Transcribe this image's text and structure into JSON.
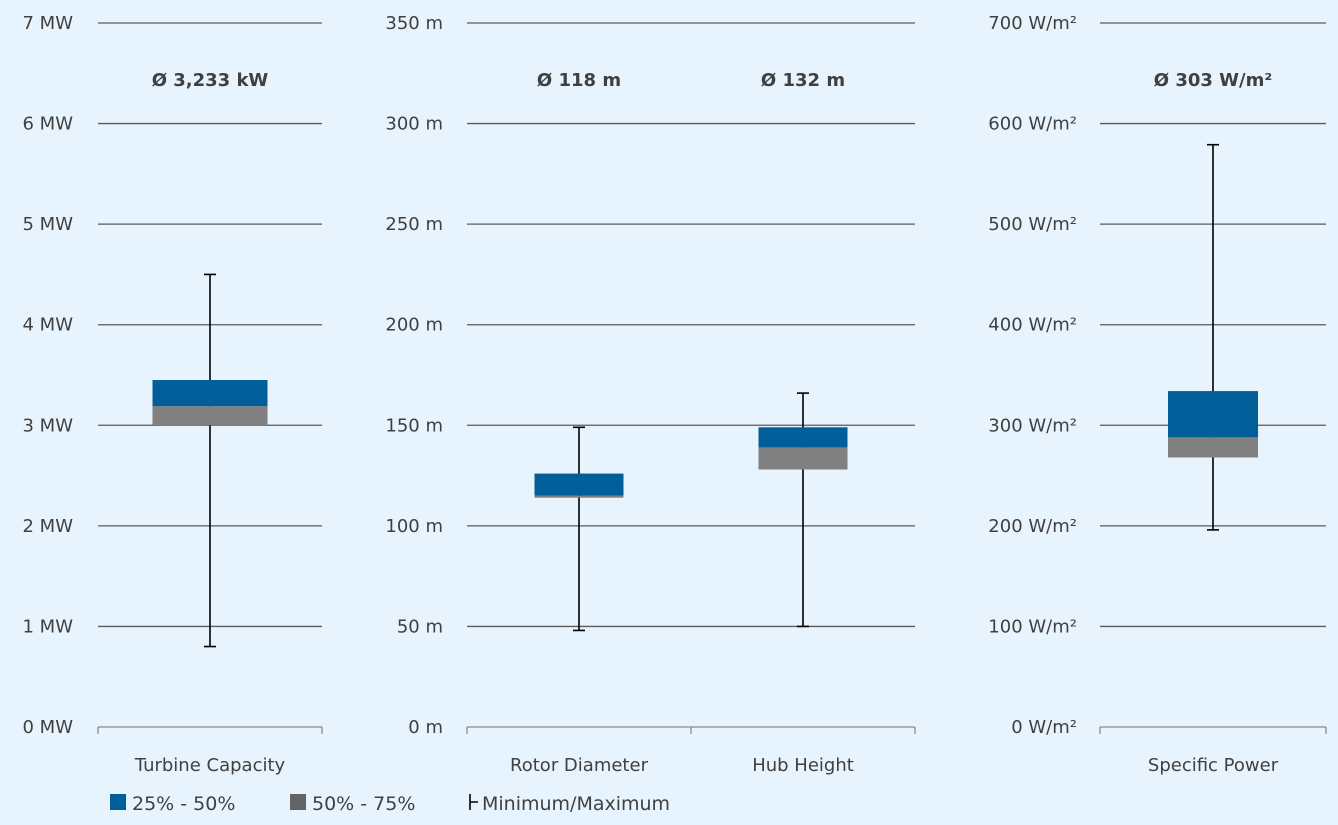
{
  "colors": {
    "background": "#e8f4fd",
    "q1_q2": "#015e98",
    "q2_q3": "#808080",
    "gridline": "#5a5a5a",
    "whisker": "#000000",
    "legend_gray": "#646464"
  },
  "legend": {
    "items": [
      {
        "label": "25% - 50%",
        "color": "#015e98",
        "type": "square"
      },
      {
        "label": "50% - 75%",
        "color": "#646464",
        "type": "square"
      },
      {
        "label": "Minimum/Maximum",
        "type": "whisker"
      }
    ]
  },
  "chart_data": [
    {
      "type": "box",
      "unit": "MW",
      "ylim": [
        0,
        7
      ],
      "yticks": [
        "0 MW",
        "1 MW",
        "2 MW",
        "3 MW",
        "4 MW",
        "5 MW",
        "6 MW",
        "7 MW"
      ],
      "grid": true,
      "categories": [
        "Turbine Capacity"
      ],
      "mean_labels": [
        "Ø 3,233 kW"
      ],
      "boxes": [
        {
          "min": 0.8,
          "q1": 3.0,
          "median": 3.19,
          "q3": 3.45,
          "max": 4.5
        }
      ]
    },
    {
      "type": "box",
      "unit": "m",
      "ylim": [
        0,
        350
      ],
      "yticks": [
        "0 m",
        "50 m",
        "100 m",
        "150 m",
        "200 m",
        "250 m",
        "300 m",
        "350 m"
      ],
      "grid": true,
      "categories": [
        "Rotor Diameter",
        "Hub Height"
      ],
      "mean_labels": [
        "Ø 118 m",
        "Ø 132 m"
      ],
      "boxes": [
        {
          "min": 48,
          "q1": 114,
          "median": 115,
          "q3": 126,
          "max": 149
        },
        {
          "min": 50,
          "q1": 128,
          "median": 139,
          "q3": 149,
          "max": 166
        }
      ]
    },
    {
      "type": "box",
      "unit": "W/m²",
      "ylim": [
        0,
        700
      ],
      "yticks": [
        "0 W/m²",
        "100 W/m²",
        "200 W/m²",
        "300 W/m²",
        "400 W/m²",
        "500 W/m²",
        "600 W/m²",
        "700 W/m²"
      ],
      "grid": true,
      "categories": [
        "Specific Power"
      ],
      "mean_labels": [
        "Ø 303 W/m²"
      ],
      "boxes": [
        {
          "min": 196,
          "q1": 268,
          "median": 288,
          "q3": 334,
          "max": 579
        }
      ]
    }
  ]
}
